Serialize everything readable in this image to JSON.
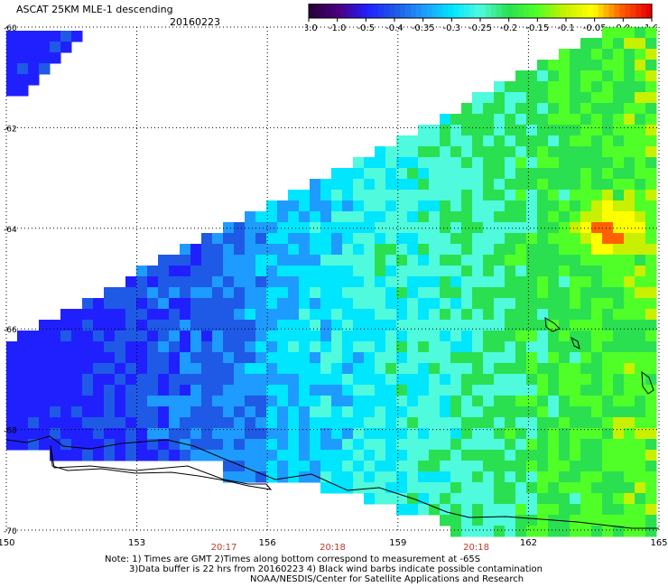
{
  "header": {
    "title": "ASCAT 25KM MLE-1 descending",
    "date": "20160223"
  },
  "colorbar": {
    "tick_labels": [
      "-3.0",
      "-1.0",
      "-0.5",
      "-0.4",
      "-0.35",
      "-0.3",
      "-0.25",
      "-0.2",
      "-0.15",
      "-0.1",
      "-0.05",
      "0.0",
      "1.0"
    ],
    "colors": [
      "#2a003c",
      "#4b0082",
      "#2020ff",
      "#1e5ae6",
      "#1e9bff",
      "#00e6ff",
      "#50fadc",
      "#2ae050",
      "#50ff28",
      "#c8f000",
      "#ffff00",
      "#ff6000",
      "#e60000"
    ]
  },
  "times": [
    "20:17",
    "20:18",
    "20:18"
  ],
  "notes": [
    "Note: 1) Times are GMT 2)Times along bottom correspond to measurement at -65S",
    "3)Data buffer is 22 hrs from 20160223 4) Black wind barbs indicate possible contamination",
    "NOAA/NESDIS/Center for Satellite Applications and Research"
  ],
  "chart_data": {
    "type": "heatmap",
    "title": "ASCAT 25KM MLE-1 descending",
    "date": "20160223",
    "x_ticks": [
      "150",
      "153",
      "156",
      "159",
      "162",
      "165"
    ],
    "y_ticks": [
      "-60",
      "-62",
      "-64",
      "-66",
      "-68",
      "-70"
    ],
    "xlim": [
      150,
      165
    ],
    "ylim": [
      -70,
      -60
    ],
    "grid": true,
    "grid_style": "dotted",
    "colorscale": {
      "boundaries": [
        -3.0,
        -1.0,
        -0.5,
        -0.4,
        -0.35,
        -0.3,
        -0.25,
        -0.2,
        -0.15,
        -0.1,
        -0.05,
        0.0,
        1.0
      ],
      "colors": [
        "#2a003c",
        "#4b0082",
        "#2020ff",
        "#1e5ae6",
        "#1e9bff",
        "#00e6ff",
        "#50fadc",
        "#2ae050",
        "#50ff28",
        "#c8f000",
        "#ffff00",
        "#ff6000"
      ]
    },
    "time_labels": [
      {
        "lon": 155.0,
        "time": "20:17"
      },
      {
        "lon": 157.5,
        "time": "20:18"
      },
      {
        "lon": 160.8,
        "time": "20:18"
      }
    ],
    "regions": [
      {
        "description": "western swath",
        "lon_range": [
          150,
          156
        ],
        "lat_range": [
          -69,
          -65.5
        ],
        "typical_value": -0.35
      },
      {
        "description": "central swath",
        "lon_range": [
          156,
          161
        ],
        "lat_range": [
          -69.5,
          -64
        ],
        "typical_value": -0.27
      },
      {
        "description": "eastern swath",
        "lon_range": [
          161,
          165
        ],
        "lat_range": [
          -70,
          -60.5
        ],
        "typical_value": -0.2
      },
      {
        "description": "local maximum",
        "lon": 163.8,
        "lat": -64.5,
        "value": -0.08
      },
      {
        "description": "local maximum",
        "lon": 158.4,
        "lat": -65.0,
        "value": -0.17
      },
      {
        "description": "upper-left swath corner",
        "lon_range": [
          150,
          151.5
        ],
        "lat_range": [
          -61.5,
          -60
        ],
        "typical_value": -0.4
      }
    ]
  }
}
